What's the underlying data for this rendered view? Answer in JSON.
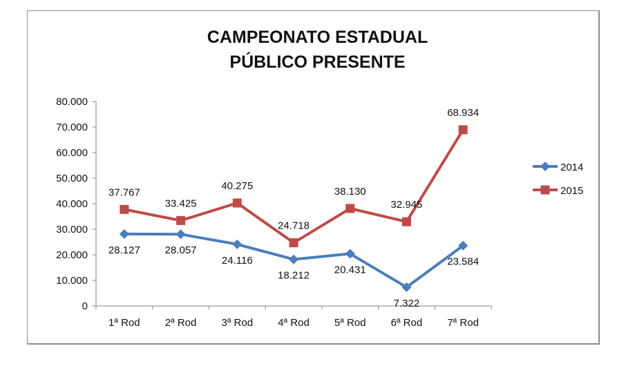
{
  "chart_data": {
    "type": "line",
    "title": "CAMPEONATO ESTADUAL PÚBLICO PRESENTE",
    "title_lines": [
      "CAMPEONATO ESTADUAL",
      "PÚBLICO PRESENTE"
    ],
    "xlabel": "",
    "ylabel": "",
    "categories": [
      "1ª Rod",
      "2ª Rod",
      "3ª Rod",
      "4ª Rod",
      "5ª Rod",
      "6ª Rod",
      "7ª Rod"
    ],
    "series": [
      {
        "name": "2014",
        "color": "#4a7ebb",
        "marker": "diamond",
        "values": [
          28127,
          28057,
          24116,
          18212,
          20431,
          7322,
          23584
        ],
        "labels": [
          "28.127",
          "28.057",
          "24.116",
          "18.212",
          "20.431",
          "7.322",
          "23.584"
        ]
      },
      {
        "name": "2015",
        "color": "#be4b48",
        "marker": "square",
        "values": [
          37767,
          33425,
          40275,
          24718,
          38130,
          32945,
          68934
        ],
        "labels": [
          "37.767",
          "33.425",
          "40.275",
          "24.718",
          "38.130",
          "32.945",
          "68.934"
        ]
      }
    ],
    "ylim": [
      0,
      80000
    ],
    "yticks": [
      0,
      10000,
      20000,
      30000,
      40000,
      50000,
      60000,
      70000,
      80000
    ],
    "ytick_labels": [
      "0",
      "10.000",
      "20.000",
      "30.000",
      "40.000",
      "50.000",
      "60.000",
      "70.000",
      "80.000"
    ],
    "grid": false,
    "legend_position": "right"
  }
}
